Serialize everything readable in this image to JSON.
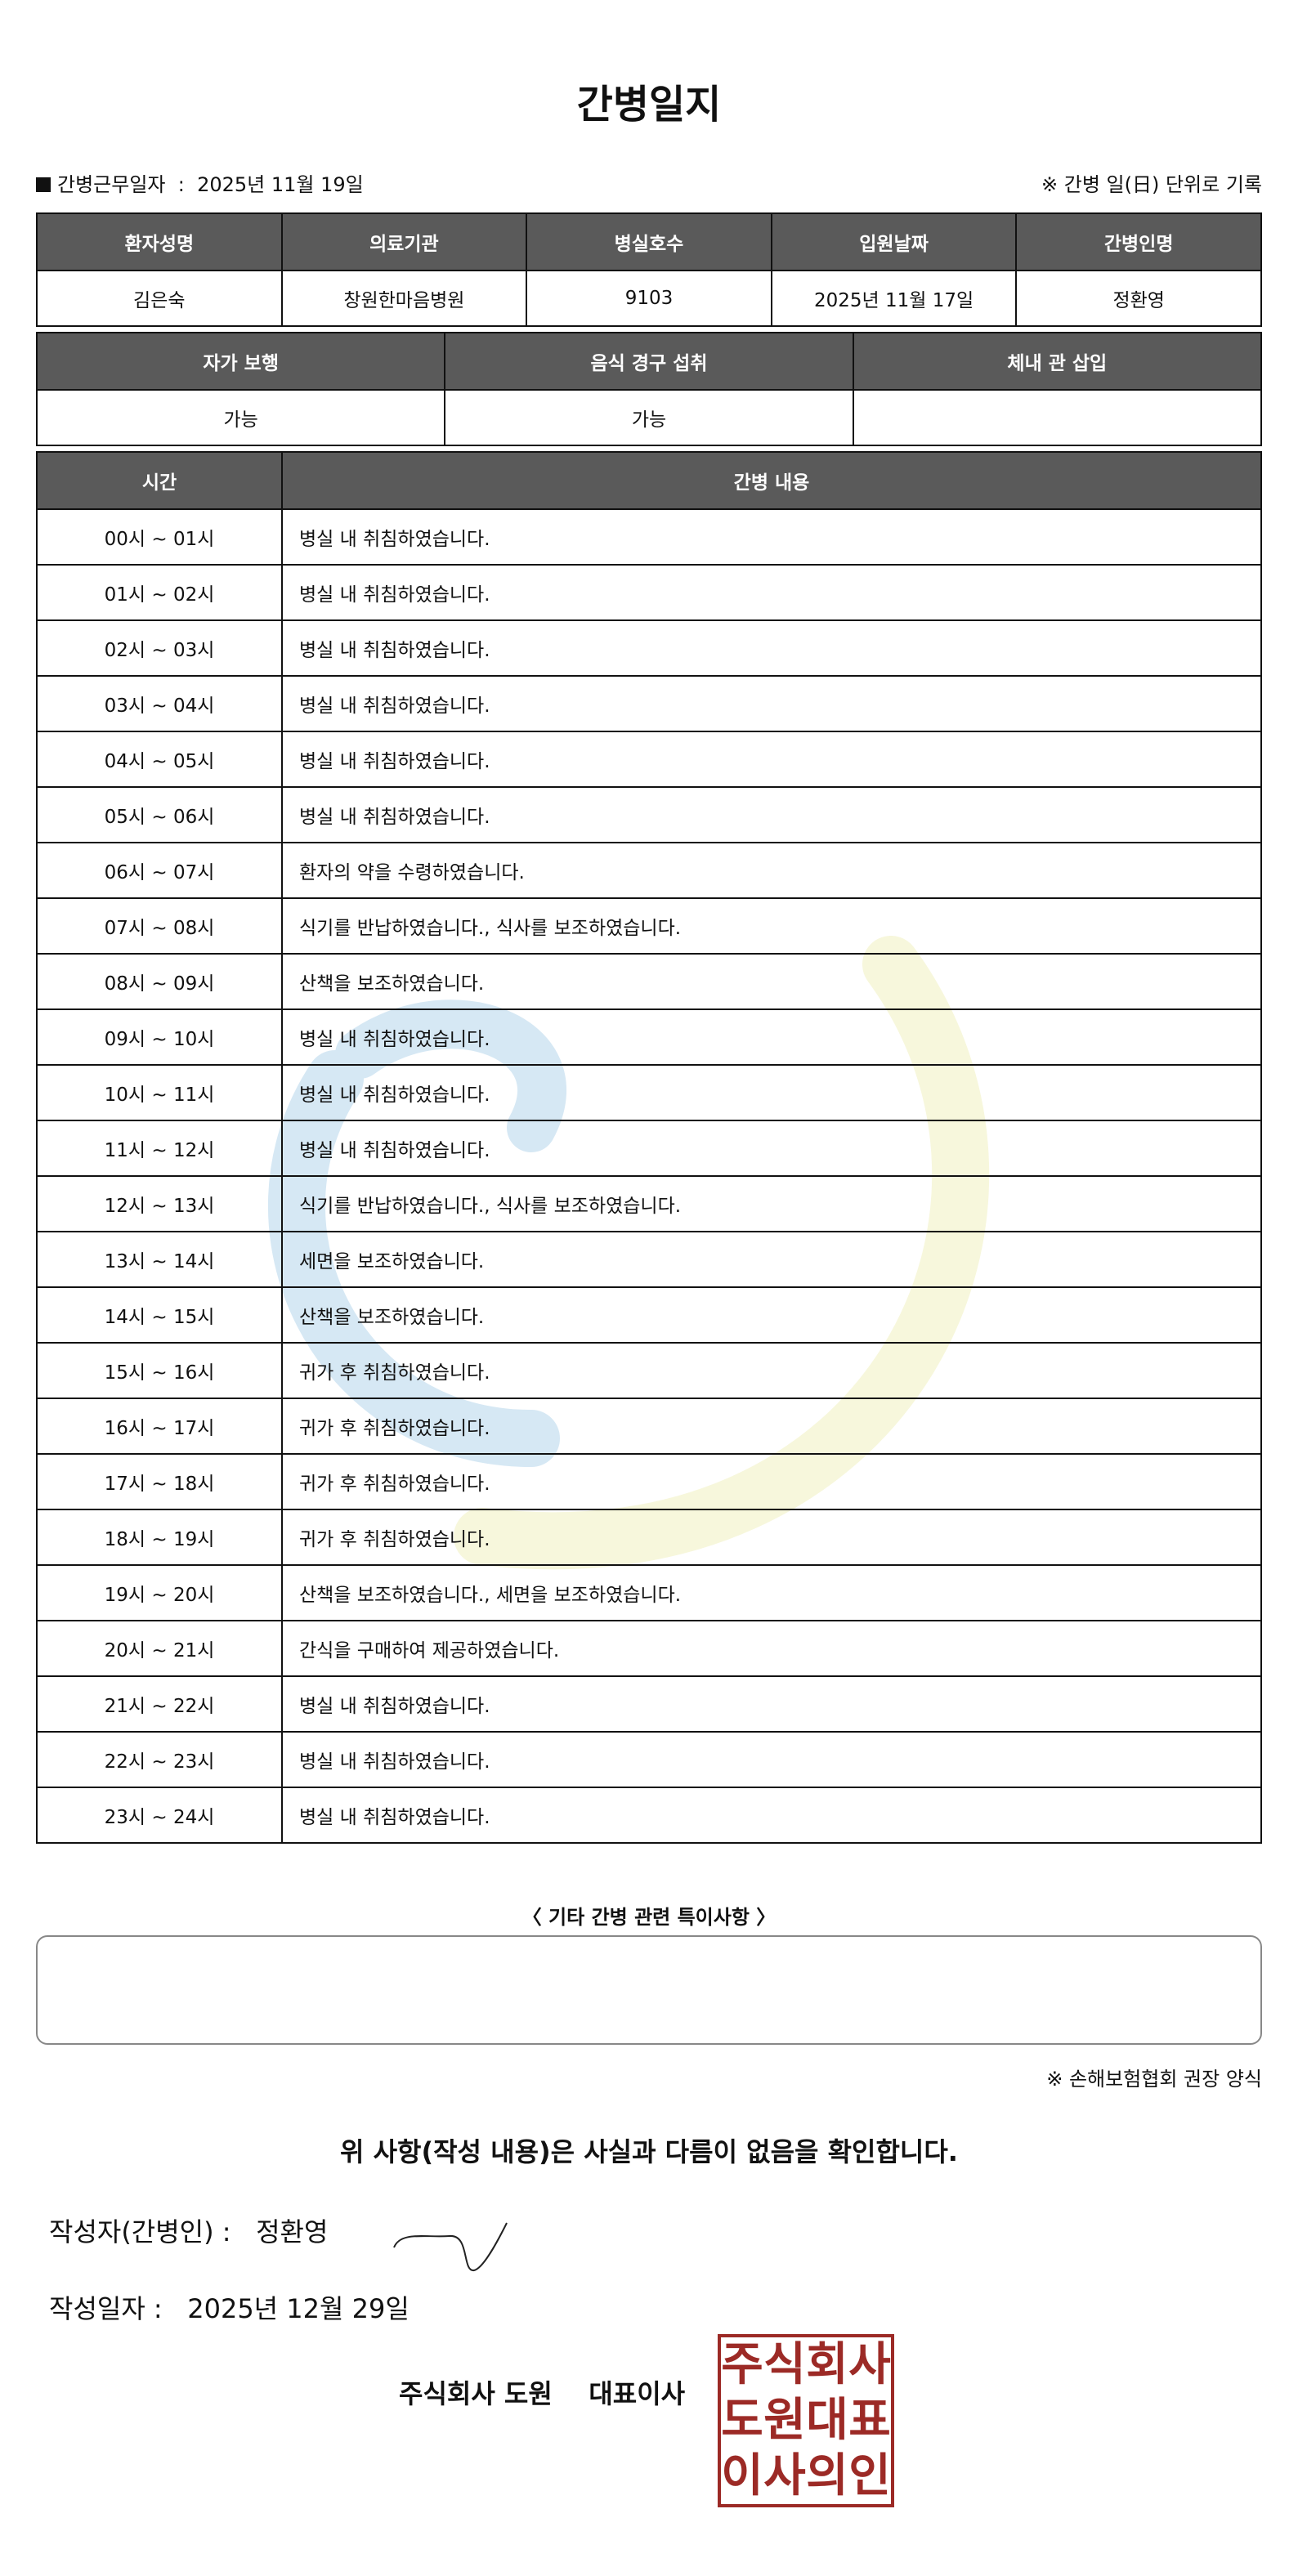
{
  "title": "간병일지",
  "work_date_label": "간병근무일자",
  "work_date": "2025년 11월 19일",
  "record_rule": "※ 간병 일(日) 단위로 기록",
  "info_table": {
    "headers": [
      "환자성명",
      "의료기관",
      "병실호수",
      "입원날짜",
      "간병인명"
    ],
    "values": [
      "김은숙",
      "창원한마음병원",
      "9103",
      "2025년 11월 17일",
      "정환영"
    ]
  },
  "status_table": {
    "headers": [
      "자가 보행",
      "음식 경구 섭취",
      "체내 관 삽입"
    ],
    "values": [
      "가능",
      "가능",
      ""
    ]
  },
  "log_table": {
    "headers": [
      "시간",
      "간병 내용"
    ],
    "rows": [
      {
        "time": "00시 ~ 01시",
        "content": "병실 내 취침하였습니다."
      },
      {
        "time": "01시 ~ 02시",
        "content": "병실 내 취침하였습니다."
      },
      {
        "time": "02시 ~ 03시",
        "content": "병실 내 취침하였습니다."
      },
      {
        "time": "03시 ~ 04시",
        "content": "병실 내 취침하였습니다."
      },
      {
        "time": "04시 ~ 05시",
        "content": "병실 내 취침하였습니다."
      },
      {
        "time": "05시 ~ 06시",
        "content": "병실 내 취침하였습니다."
      },
      {
        "time": "06시 ~ 07시",
        "content": "환자의 약을 수령하였습니다."
      },
      {
        "time": "07시 ~ 08시",
        "content": "식기를 반납하였습니다., 식사를 보조하였습니다."
      },
      {
        "time": "08시 ~ 09시",
        "content": "산책을 보조하였습니다."
      },
      {
        "time": "09시 ~ 10시",
        "content": "병실 내 취침하였습니다."
      },
      {
        "time": "10시 ~ 11시",
        "content": "병실 내 취침하였습니다."
      },
      {
        "time": "11시 ~ 12시",
        "content": "병실 내 취침하였습니다."
      },
      {
        "time": "12시 ~ 13시",
        "content": "식기를 반납하였습니다., 식사를 보조하였습니다."
      },
      {
        "time": "13시 ~ 14시",
        "content": "세면을 보조하였습니다."
      },
      {
        "time": "14시 ~ 15시",
        "content": "산책을 보조하였습니다."
      },
      {
        "time": "15시 ~ 16시",
        "content": "귀가 후 취침하였습니다."
      },
      {
        "time": "16시 ~ 17시",
        "content": "귀가 후 취침하였습니다."
      },
      {
        "time": "17시 ~ 18시",
        "content": "귀가 후 취침하였습니다."
      },
      {
        "time": "18시 ~ 19시",
        "content": "귀가 후 취침하였습니다."
      },
      {
        "time": "19시 ~ 20시",
        "content": "산책을 보조하였습니다., 세면을 보조하였습니다."
      },
      {
        "time": "20시 ~ 21시",
        "content": "간식을 구매하여 제공하였습니다."
      },
      {
        "time": "21시 ~ 22시",
        "content": "병실 내 취침하였습니다."
      },
      {
        "time": "22시 ~ 23시",
        "content": "병실 내 취침하였습니다."
      },
      {
        "time": "23시 ~ 24시",
        "content": "병실 내 취침하였습니다."
      }
    ]
  },
  "special_notes_title": "〈 기타 간병 관련 특이사항 〉",
  "special_notes": "",
  "form_note": "※ 손해보험협회 권장 양식",
  "confirmation": "위 사항(작성 내용)은 사실과 다름이 없음을 확인합니다.",
  "writer_label": "작성자(간병인) :",
  "writer_name": "정환영",
  "written_date_label": "작성일자 :",
  "written_date": "2025년 12월 29일",
  "company": "주식회사 도원",
  "representative": "대표이사",
  "seal_text": [
    "주",
    "식",
    "회",
    "사",
    "도",
    "원",
    "대",
    "표",
    "이",
    "사",
    "의",
    "인"
  ],
  "colors": {
    "header_bg": "#5a5a5a",
    "seal": "#9c2a26",
    "watermark_blue": "#d6e8f4",
    "watermark_yellow": "#f7f7dc"
  }
}
